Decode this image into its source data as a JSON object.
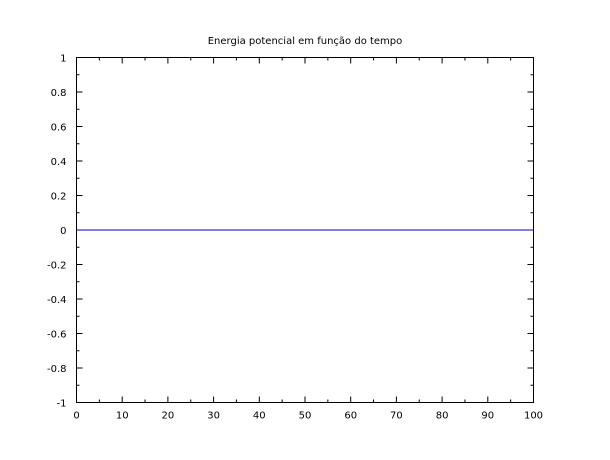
{
  "chart_data": {
    "type": "line",
    "title": "Energia potencial em função do tempo",
    "xlabel": "",
    "ylabel": "",
    "xlim": [
      0,
      100
    ],
    "ylim": [
      -1,
      1
    ],
    "x_ticks": [
      0,
      10,
      20,
      30,
      40,
      50,
      60,
      70,
      80,
      90,
      100
    ],
    "x_tick_labels": [
      "0",
      "10",
      "20",
      "30",
      "40",
      "50",
      "60",
      "70",
      "80",
      "90",
      "100"
    ],
    "y_ticks": [
      1,
      0.8,
      0.6,
      0.4,
      0.2,
      0,
      -0.2,
      -0.4,
      -0.6,
      -0.8,
      -1
    ],
    "y_tick_labels": [
      "1",
      "0.8",
      "0.6",
      "0.4",
      "0.2",
      "0",
      "-0.2",
      "-0.4",
      "-0.6",
      "-0.8",
      "-1"
    ],
    "grid": false,
    "legend": "none",
    "series": [
      {
        "color": "#0000cc",
        "x": [
          0,
          10,
          20,
          30,
          40,
          50,
          60,
          70,
          80,
          90,
          100
        ],
        "values": [
          0,
          0,
          0,
          0,
          0,
          0,
          0,
          0,
          0,
          0,
          0
        ]
      }
    ]
  }
}
